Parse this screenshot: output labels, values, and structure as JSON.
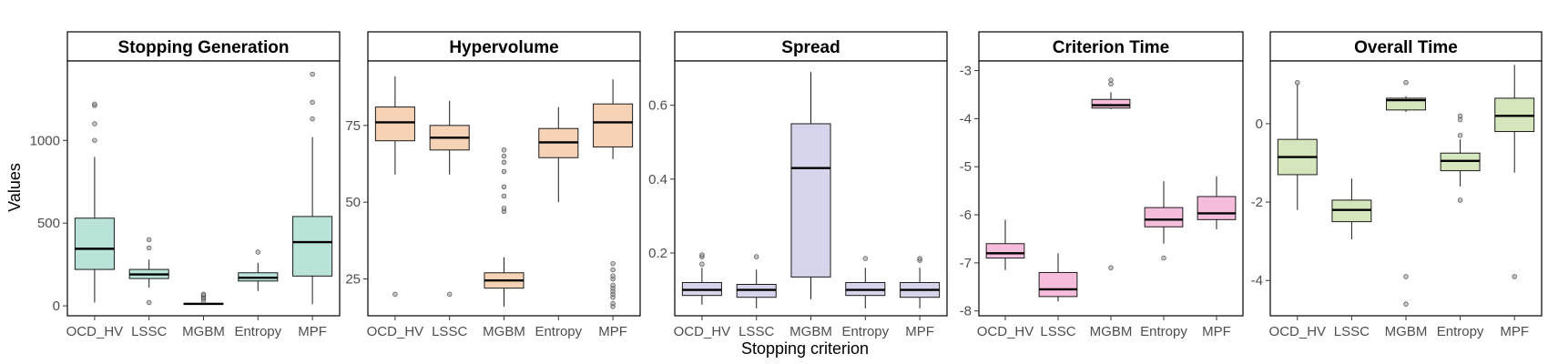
{
  "figure": {
    "xlabel": "Stopping criterion",
    "ylabel": "Values"
  },
  "chart_data": [
    {
      "type": "box",
      "title": "Stopping Generation",
      "fill": "#b9e3d8",
      "categories": [
        "OCD_HV",
        "LSSC",
        "MGBM",
        "Entropy",
        "MPF"
      ],
      "ylim": [
        -60,
        1480
      ],
      "yticks": [
        0,
        500,
        1000
      ],
      "ytick_labels": [
        "0",
        "500",
        "1000"
      ],
      "boxes": [
        {
          "whisker_low": 20,
          "q1": 220,
          "median": 345,
          "q3": 530,
          "whisker_high": 900,
          "outliers": [
            1000,
            1100,
            1210,
            1220
          ]
        },
        {
          "whisker_low": 110,
          "q1": 165,
          "median": 190,
          "q3": 220,
          "whisker_high": 280,
          "outliers": [
            20,
            350,
            400
          ]
        },
        {
          "whisker_low": 5,
          "q1": 10,
          "median": 12,
          "q3": 15,
          "whisker_high": 20,
          "outliers": [
            30,
            45,
            55,
            65,
            70
          ]
        },
        {
          "whisker_low": 90,
          "q1": 150,
          "median": 170,
          "q3": 200,
          "whisker_high": 260,
          "outliers": [
            325
          ]
        },
        {
          "whisker_low": 10,
          "q1": 180,
          "median": 385,
          "q3": 540,
          "whisker_high": 1020,
          "outliers": [
            1130,
            1230,
            1400
          ]
        }
      ]
    },
    {
      "type": "box",
      "title": "Hypervolume",
      "fill": "#f6d3b6",
      "categories": [
        "OCD_HV",
        "LSSC",
        "MGBM",
        "Entropy",
        "MPF"
      ],
      "ylim": [
        13,
        96
      ],
      "yticks": [
        25,
        50,
        75
      ],
      "ytick_labels": [
        "25",
        "50",
        "75"
      ],
      "boxes": [
        {
          "whisker_low": 59,
          "q1": 70,
          "median": 76,
          "q3": 81,
          "whisker_high": 91,
          "outliers": [
            20
          ]
        },
        {
          "whisker_low": 59,
          "q1": 67,
          "median": 71,
          "q3": 75,
          "whisker_high": 83,
          "outliers": [
            20
          ]
        },
        {
          "whisker_low": 16,
          "q1": 22,
          "median": 24.5,
          "q3": 27,
          "whisker_high": 32,
          "outliers": [
            47,
            48,
            52,
            55,
            60,
            63,
            65,
            67
          ]
        },
        {
          "whisker_low": 50,
          "q1": 64.5,
          "median": 69.5,
          "q3": 74,
          "whisker_high": 81,
          "outliers": []
        },
        {
          "whisker_low": 64,
          "q1": 68,
          "median": 76,
          "q3": 82,
          "whisker_high": 90,
          "outliers": [
            16,
            17,
            19,
            20,
            21,
            22,
            23,
            25,
            26,
            28,
            30
          ]
        }
      ]
    },
    {
      "type": "box",
      "title": "Spread",
      "fill": "#d6d4eb",
      "categories": [
        "OCD_HV",
        "LSSC",
        "MGBM",
        "Entropy",
        "MPF"
      ],
      "ylim": [
        0.03,
        0.72
      ],
      "yticks": [
        0.2,
        0.4,
        0.6
      ],
      "ytick_labels": [
        "0.2",
        "0.4",
        "0.6"
      ],
      "boxes": [
        {
          "whisker_low": 0.06,
          "q1": 0.085,
          "median": 0.1,
          "q3": 0.12,
          "whisker_high": 0.16,
          "outliers": [
            0.17,
            0.19,
            0.195
          ]
        },
        {
          "whisker_low": 0.05,
          "q1": 0.08,
          "median": 0.1,
          "q3": 0.115,
          "whisker_high": 0.155,
          "outliers": [
            0.19
          ]
        },
        {
          "whisker_low": 0.075,
          "q1": 0.135,
          "median": 0.43,
          "q3": 0.55,
          "whisker_high": 0.69,
          "outliers": []
        },
        {
          "whisker_low": 0.05,
          "q1": 0.085,
          "median": 0.1,
          "q3": 0.12,
          "whisker_high": 0.16,
          "outliers": [
            0.185
          ]
        },
        {
          "whisker_low": 0.05,
          "q1": 0.08,
          "median": 0.1,
          "q3": 0.12,
          "whisker_high": 0.16,
          "outliers": [
            0.18,
            0.185
          ]
        }
      ]
    },
    {
      "type": "box",
      "title": "Criterion Time",
      "fill": "#f6bcdc",
      "categories": [
        "OCD_HV",
        "LSSC",
        "MGBM",
        "Entropy",
        "MPF"
      ],
      "ylim": [
        -8.1,
        -2.8
      ],
      "yticks": [
        -8,
        -7,
        -6,
        -5,
        -4,
        -3
      ],
      "ytick_labels": [
        "-8",
        "-7",
        "-6",
        "-5",
        "-4",
        "-3"
      ],
      "boxes": [
        {
          "whisker_low": -7.15,
          "q1": -6.9,
          "median": -6.8,
          "q3": -6.6,
          "whisker_high": -6.1,
          "outliers": []
        },
        {
          "whisker_low": -7.8,
          "q1": -7.7,
          "median": -7.55,
          "q3": -7.2,
          "whisker_high": -6.8,
          "outliers": []
        },
        {
          "whisker_low": -3.8,
          "q1": -3.78,
          "median": -3.72,
          "q3": -3.6,
          "whisker_high": -3.45,
          "outliers": [
            -3.2,
            -3.28,
            -7.1
          ]
        },
        {
          "whisker_low": -6.6,
          "q1": -6.25,
          "median": -6.1,
          "q3": -5.85,
          "whisker_high": -5.3,
          "outliers": [
            -6.9
          ]
        },
        {
          "whisker_low": -6.3,
          "q1": -6.1,
          "median": -5.97,
          "q3": -5.62,
          "whisker_high": -5.2,
          "outliers": []
        }
      ]
    },
    {
      "type": "box",
      "title": "Overall Time",
      "fill": "#d5e6bc",
      "categories": [
        "OCD_HV",
        "LSSC",
        "MGBM",
        "Entropy",
        "MPF"
      ],
      "ylim": [
        -4.9,
        1.6
      ],
      "yticks": [
        -4,
        -2,
        0
      ],
      "ytick_labels": [
        "-4",
        "-2",
        "0"
      ],
      "boxes": [
        {
          "whisker_low": -2.2,
          "q1": -1.3,
          "median": -0.85,
          "q3": -0.4,
          "whisker_high": 1.0,
          "outliers": [
            1.05
          ]
        },
        {
          "whisker_low": -2.95,
          "q1": -2.5,
          "median": -2.2,
          "q3": -1.95,
          "whisker_high": -1.4,
          "outliers": []
        },
        {
          "whisker_low": 0.3,
          "q1": 0.35,
          "median": 0.6,
          "q3": 0.65,
          "whisker_high": 0.7,
          "outliers": [
            1.05,
            -3.9,
            -4.6
          ]
        },
        {
          "whisker_low": -1.6,
          "q1": -1.2,
          "median": -0.95,
          "q3": -0.75,
          "whisker_high": -0.4,
          "outliers": [
            -0.3,
            -1.95,
            0.1,
            0.2
          ]
        },
        {
          "whisker_low": -1.25,
          "q1": -0.2,
          "median": 0.2,
          "q3": 0.65,
          "whisker_high": 1.5,
          "outliers": [
            -3.9
          ]
        }
      ]
    }
  ]
}
